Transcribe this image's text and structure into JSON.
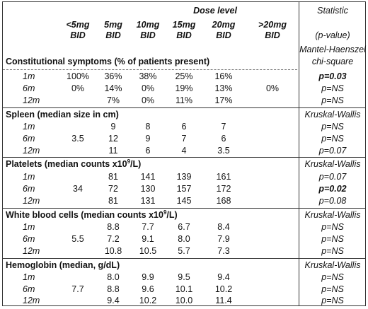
{
  "header": {
    "dose_level": "Dose level",
    "statistic": "Statistic",
    "doses": [
      {
        "top": "<5mg",
        "bottom": "BID"
      },
      {
        "top": "5mg",
        "bottom": "BID"
      },
      {
        "top": "10mg",
        "bottom": "BID"
      },
      {
        "top": "15mg",
        "bottom": "BID"
      },
      {
        "top": "20mg",
        "bottom": "BID"
      },
      {
        "top": ">20mg",
        "bottom": "BID"
      }
    ],
    "pvalue": "(p-value)"
  },
  "sections": [
    {
      "title": "Constitutional symptoms (% of patients present)",
      "test": [
        "Mantel-Haenszel",
        "chi-square"
      ],
      "rows": [
        {
          "label": "1m",
          "values": [
            "100%",
            "36%",
            "38%",
            "25%",
            "16%",
            ""
          ],
          "p": "p=0.03",
          "bold": true
        },
        {
          "label": "6m",
          "values": [
            "0%",
            "14%",
            "0%",
            "19%",
            "13%",
            "0%"
          ],
          "p": "p=NS",
          "bold": false
        },
        {
          "label": "12m",
          "values": [
            "",
            "7%",
            "0%",
            "11%",
            "17%",
            ""
          ],
          "p": "p=NS",
          "bold": false
        }
      ]
    },
    {
      "title": "Spleen (median size in cm)",
      "test": [
        "Kruskal-Wallis"
      ],
      "rows": [
        {
          "label": "1m",
          "values": [
            "",
            "9",
            "8",
            "6",
            "7",
            ""
          ],
          "p": "p=NS",
          "bold": false
        },
        {
          "label": "6m",
          "values": [
            "3.5",
            "12",
            "9",
            "7",
            "6",
            ""
          ],
          "p": "p=NS",
          "bold": false
        },
        {
          "label": "12m",
          "values": [
            "",
            "11",
            "6",
            "4",
            "3.5",
            ""
          ],
          "p": "p=0.07",
          "bold": false
        }
      ]
    },
    {
      "title_pre": "Platelets (median counts x10",
      "title_sup": "9",
      "title_post": "/L)",
      "test": [
        "Kruskal-Wallis"
      ],
      "rows": [
        {
          "label": "1m",
          "values": [
            "",
            "81",
            "141",
            "139",
            "161",
            ""
          ],
          "p": "p=0.07",
          "bold": false
        },
        {
          "label": "6m",
          "values": [
            "34",
            "72",
            "130",
            "157",
            "172",
            ""
          ],
          "p": "p=0.02",
          "bold": true
        },
        {
          "label": "12m",
          "values": [
            "",
            "81",
            "131",
            "145",
            "168",
            ""
          ],
          "p": "p=0.08",
          "bold": false
        }
      ]
    },
    {
      "title_pre": "White blood cells (median counts x10",
      "title_sup": "9",
      "title_post": "/L)",
      "test": [
        "Kruskal-Wallis"
      ],
      "rows": [
        {
          "label": "1m",
          "values": [
            "",
            "8.8",
            "7.7",
            "6.7",
            "8.4",
            ""
          ],
          "p": "p=NS",
          "bold": false
        },
        {
          "label": "6m",
          "values": [
            "5.5",
            "7.2",
            "9.1",
            "8.0",
            "7.9",
            ""
          ],
          "p": "p=NS",
          "bold": false
        },
        {
          "label": "12m",
          "values": [
            "",
            "10.8",
            "10.5",
            "5.7",
            "7.3",
            ""
          ],
          "p": "p=NS",
          "bold": false
        }
      ]
    },
    {
      "title": "Hemoglobin (median, g/dL)",
      "test": [
        "Kruskal-Wallis"
      ],
      "rows": [
        {
          "label": "1m",
          "values": [
            "",
            "8.0",
            "9.9",
            "9.5",
            "9.4",
            ""
          ],
          "p": "p=NS",
          "bold": false
        },
        {
          "label": "6m",
          "values": [
            "7.7",
            "8.8",
            "9.6",
            "10.1",
            "10.2",
            ""
          ],
          "p": "p=NS",
          "bold": false
        },
        {
          "label": "12m",
          "values": [
            "",
            "9.4",
            "10.2",
            "10.0",
            "11.4",
            ""
          ],
          "p": "p=NS",
          "bold": false
        }
      ]
    }
  ]
}
